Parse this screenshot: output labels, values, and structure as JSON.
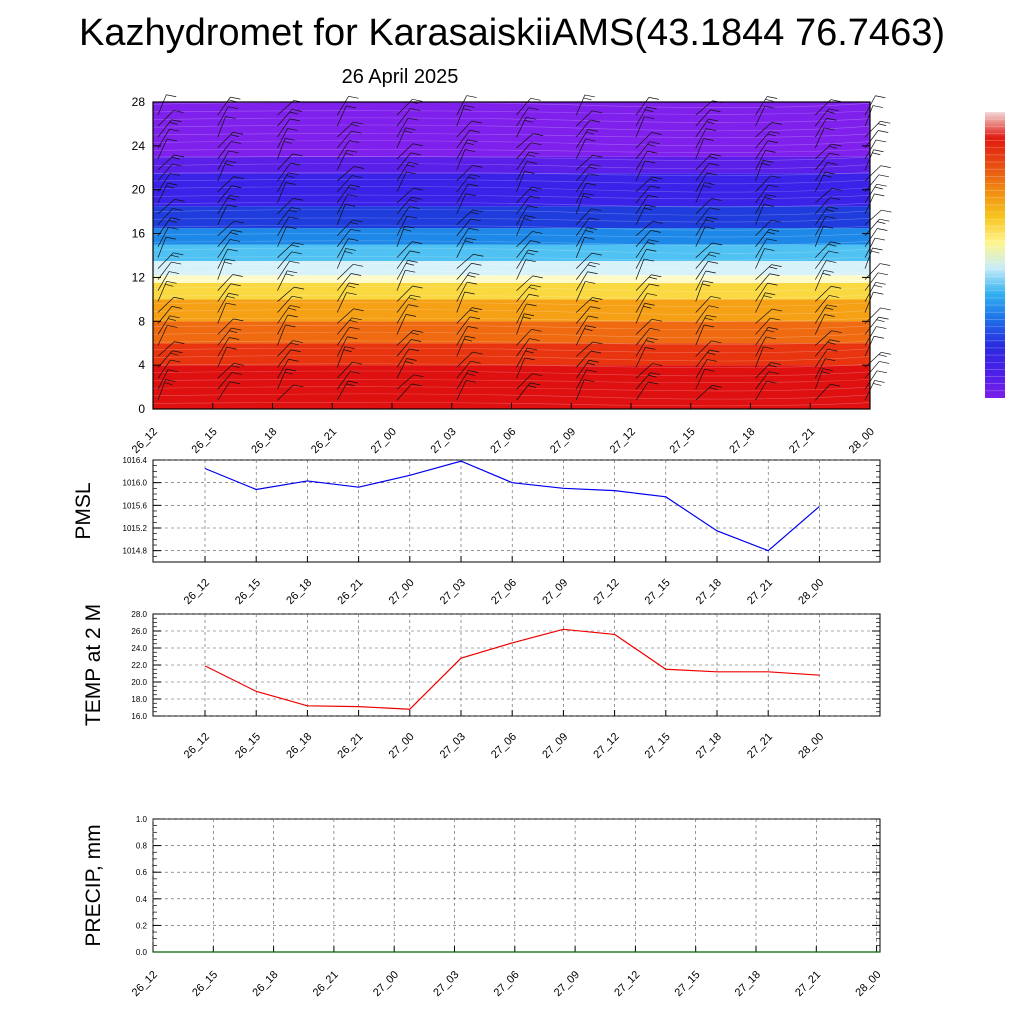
{
  "title": "Kazhydromet for KarasaiskiiAMS(43.1844 76.7463)",
  "subtitle": "26 April 2025",
  "colors": {
    "pmsl_line": "#0000ee",
    "temp_line": "#ee0000",
    "precip_line": "#006400",
    "grid": "#555555"
  },
  "colorbar": {
    "stops": [
      "#7b1fe8",
      "#4a1fe8",
      "#2a2ae0",
      "#1e6ee8",
      "#30b0f0",
      "#c8ecf8",
      "#fff58a",
      "#f7c21a",
      "#f08a12",
      "#e84a12",
      "#e01a10",
      "#f2d8d8"
    ]
  },
  "chart_data": [
    {
      "id": "cross_section",
      "type": "heatmap",
      "x_ticks": [
        "26_12",
        "26_15",
        "26_18",
        "26_21",
        "27_00",
        "27_03",
        "27_06",
        "27_09",
        "27_12",
        "27_15",
        "27_18",
        "27_21",
        "28_00"
      ],
      "y_ticks": [
        "0",
        "4",
        "8",
        "12",
        "16",
        "20",
        "24",
        "28"
      ],
      "ylim": [
        0,
        28
      ],
      "levels_colors": [
        {
          "from": 0,
          "to": 4,
          "color": "#df1010"
        },
        {
          "from": 4,
          "to": 6,
          "color": "#e8340f"
        },
        {
          "from": 6,
          "to": 8,
          "color": "#ef6a10"
        },
        {
          "from": 8,
          "to": 10,
          "color": "#f5a015"
        },
        {
          "from": 10,
          "to": 11.5,
          "color": "#f9d840"
        },
        {
          "from": 11.5,
          "to": 12.2,
          "color": "#fffbc8"
        },
        {
          "from": 12.2,
          "to": 13.5,
          "color": "#d8f2fa"
        },
        {
          "from": 13.5,
          "to": 15,
          "color": "#4fc1f2"
        },
        {
          "from": 15,
          "to": 16.5,
          "color": "#1e88e8"
        },
        {
          "from": 16.5,
          "to": 18.5,
          "color": "#1f3cdc"
        },
        {
          "from": 18.5,
          "to": 21.5,
          "color": "#3a22e8"
        },
        {
          "from": 21.5,
          "to": 23,
          "color": "#5a1fe8"
        },
        {
          "from": 23,
          "to": 28,
          "color": "#7f20ec"
        }
      ]
    },
    {
      "id": "pmsl",
      "type": "line",
      "ylabel": "PMSL",
      "x_ticks": [
        "26_12",
        "26_15",
        "26_18",
        "26_21",
        "27_00",
        "27_03",
        "27_06",
        "27_09",
        "27_12",
        "27_15",
        "27_18",
        "27_21",
        "28_00"
      ],
      "y_ticks": [
        "1014.8",
        "1015.2",
        "1015.6",
        "1016.0",
        "1016.4"
      ],
      "ylim": [
        1014.6,
        1016.4
      ],
      "series": [
        {
          "values": [
            1016.25,
            1015.88,
            1016.03,
            1015.92,
            1016.13,
            1016.38,
            1016.0,
            1015.9,
            1015.86,
            1015.75,
            1015.15,
            1014.8,
            1015.58
          ]
        }
      ]
    },
    {
      "id": "temp",
      "type": "line",
      "ylabel": "TEMP at 2 M",
      "x_ticks": [
        "26_12",
        "26_15",
        "26_18",
        "26_21",
        "27_00",
        "27_03",
        "27_06",
        "27_09",
        "27_12",
        "27_15",
        "27_18",
        "27_21",
        "28_00"
      ],
      "y_ticks": [
        "16.0",
        "18.0",
        "20.0",
        "22.0",
        "24.0",
        "26.0",
        "28.0"
      ],
      "ylim": [
        16,
        28
      ],
      "series": [
        {
          "values": [
            21.9,
            18.9,
            17.2,
            17.1,
            16.8,
            22.8,
            24.6,
            26.2,
            25.6,
            21.5,
            21.2,
            21.2,
            20.8
          ]
        }
      ]
    },
    {
      "id": "precip",
      "type": "line",
      "ylabel": "PRECIP, mm",
      "x_ticks": [
        "26_12",
        "26_15",
        "26_18",
        "26_21",
        "27_00",
        "27_03",
        "27_06",
        "27_09",
        "27_12",
        "27_15",
        "27_18",
        "27_21",
        "28_00"
      ],
      "y_ticks": [
        "0.0",
        "0.2",
        "0.4",
        "0.6",
        "0.8",
        "1.0"
      ],
      "ylim": [
        0,
        1
      ],
      "series": [
        {
          "values": [
            0,
            0,
            0,
            0,
            0,
            0,
            0,
            0,
            0,
            0,
            0,
            0,
            0
          ]
        }
      ]
    }
  ]
}
